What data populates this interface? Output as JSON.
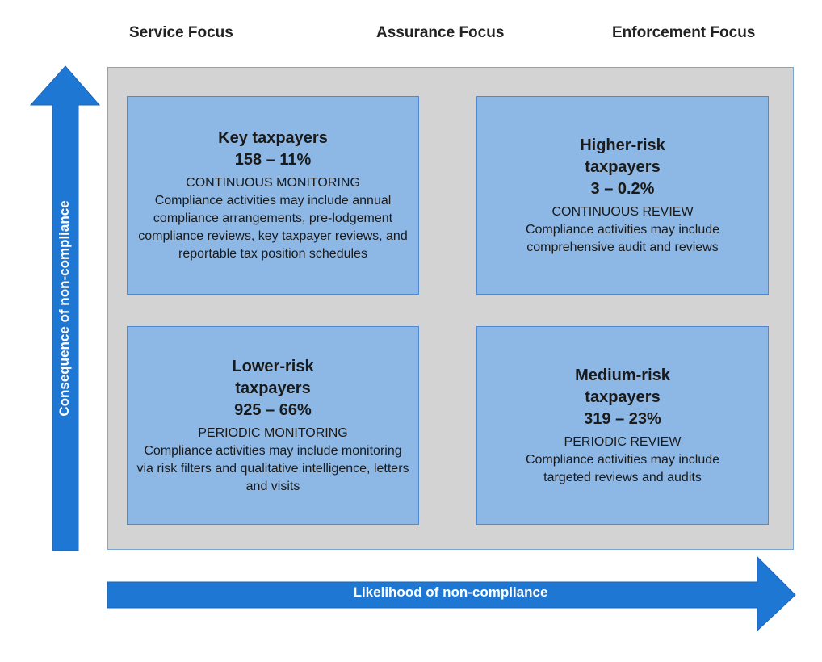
{
  "column_headers": {
    "service": "Service Focus",
    "assurance": "Assurance Focus",
    "enforcement": "Enforcement Focus"
  },
  "axes": {
    "y_label": "Consequence of non-compliance",
    "x_label": "Likelihood of non-compliance",
    "arrow_color": "#1f77d4"
  },
  "quadrants": {
    "key": {
      "title": "Key taxpayers",
      "stat": "158 – 11%",
      "mode": "CONTINUOUS MONITORING",
      "description": "Compliance activities may include annual compliance arrangements, pre-lodgement compliance reviews, key taxpayer reviews, and reportable tax position schedules"
    },
    "higher": {
      "title": "Higher-risk taxpayers",
      "stat": "3 – 0.2%",
      "mode": "CONTINUOUS REVIEW",
      "description": "Compliance activities may include comprehensive audit and reviews"
    },
    "lower": {
      "title": "Lower-risk taxpayers",
      "stat": "925 – 66%",
      "mode": "PERIODIC MONITORING",
      "description": "Compliance activities may include monitoring via risk filters and qualitative intelligence, letters and visits"
    },
    "medium": {
      "title": "Medium-risk taxpayers",
      "stat": "319 – 23%",
      "mode": "PERIODIC REVIEW",
      "description": "Compliance activities may include targeted reviews and audits"
    }
  },
  "colors": {
    "grid_background": "#d3d3d3",
    "quadrant_fill": "#8db8e6",
    "quadrant_border": "#4f8ad0"
  }
}
